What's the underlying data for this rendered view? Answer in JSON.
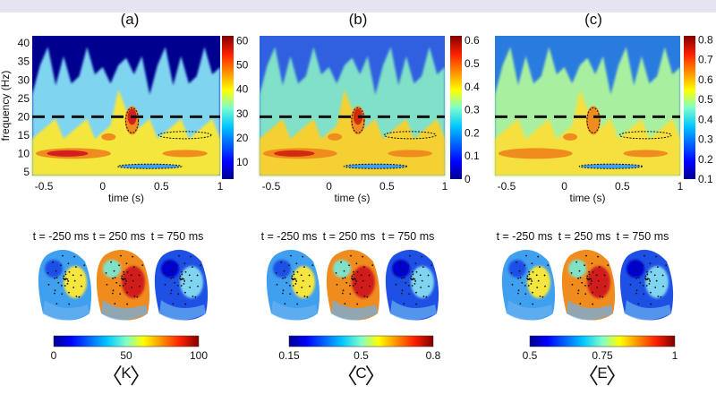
{
  "chart_data": {
    "type": "heatmap",
    "panels": [
      {
        "title": "(a)",
        "xlabel": "time (s)",
        "ylabel": "frequency (Hz)",
        "xticks": [
          "-0.5",
          "0",
          "0.5",
          "1"
        ],
        "yticks": [
          "40",
          "35",
          "30",
          "25",
          "20",
          "15",
          "10",
          "5"
        ],
        "xlim": [
          -0.6,
          1
        ],
        "ylim": [
          4,
          42
        ],
        "reference_line_hz": 20,
        "colorbar_ticks": [
          "60",
          "50",
          "40",
          "30",
          "20",
          "10"
        ],
        "colorbar_range": [
          3,
          62
        ],
        "scalp_labels": [
          "t = -250 ms",
          "t = 250 ms",
          "t = 750 ms"
        ],
        "scalp_colorbar_ticks": [
          "0",
          "50",
          "100"
        ],
        "symbol": "K"
      },
      {
        "title": "(b)",
        "xlabel": "time (s)",
        "ylabel": "",
        "xticks": [
          "-0.5",
          "0",
          "0.5",
          "1"
        ],
        "yticks": [],
        "xlim": [
          -0.6,
          1
        ],
        "ylim": [
          4,
          42
        ],
        "reference_line_hz": 20,
        "colorbar_ticks": [
          "0.6",
          "0.5",
          "0.4",
          "0.3",
          "0.2",
          "0.1",
          "0"
        ],
        "colorbar_range": [
          0,
          0.62
        ],
        "scalp_labels": [
          "t = -250 ms",
          "t = 250 ms",
          "t = 750 ms"
        ],
        "scalp_colorbar_ticks": [
          "0.15",
          "0.5",
          "0.8"
        ],
        "symbol": "C"
      },
      {
        "title": "(c)",
        "xlabel": "time (s)",
        "ylabel": "",
        "xticks": [
          "-0.5",
          "0",
          "0.5",
          "1"
        ],
        "yticks": [],
        "xlim": [
          -0.6,
          1
        ],
        "ylim": [
          4,
          42
        ],
        "reference_line_hz": 20,
        "colorbar_ticks": [
          "0.8",
          "0.7",
          "0.6",
          "0.5",
          "0.4",
          "0.3",
          "0.2",
          "0.1"
        ],
        "colorbar_range": [
          0.1,
          0.82
        ],
        "scalp_labels": [
          "t = -250 ms",
          "t = 250 ms",
          "t = 750 ms"
        ],
        "scalp_colorbar_ticks": [
          "0.5",
          "0.75",
          "1"
        ],
        "symbol": "E"
      }
    ],
    "colormap": "jet",
    "colors": {
      "dark_blue": "#00008f",
      "blue": "#1e50e6",
      "cyan": "#7fe0e8",
      "yellow": "#f5e63c",
      "orange": "#f08c1e",
      "red": "#d21e1e",
      "dark_red": "#800000"
    }
  }
}
